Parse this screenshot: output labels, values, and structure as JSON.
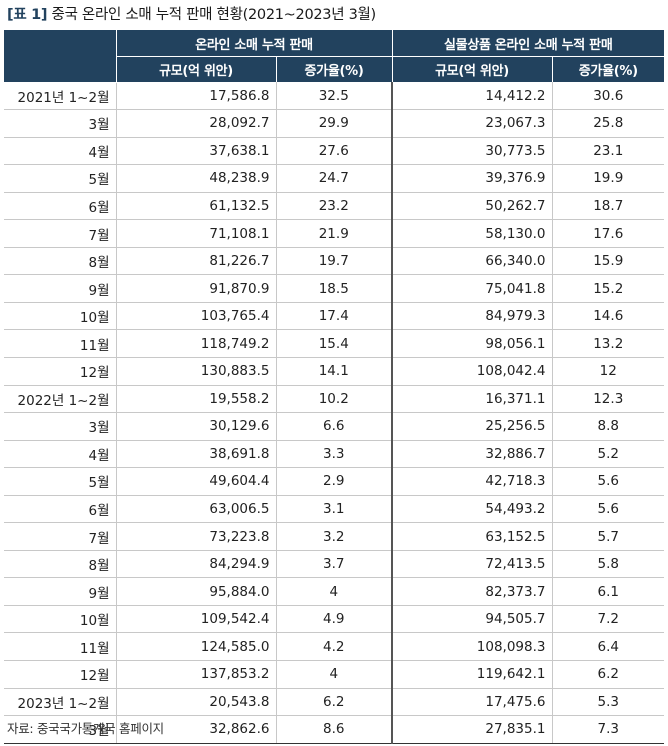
{
  "title": {
    "tag": "[표 1]",
    "text": " 중국 온라인 소매 누적 판매 현황(2021~2023년 3월)"
  },
  "table": {
    "group_headers": [
      "온라인 소매 누적 판매",
      "실물상품 온라인 소매 누적 판매"
    ],
    "sub_headers": [
      "규모(억 위안)",
      "증가율(%)",
      "규모(억 위안)",
      "증가율(%)"
    ],
    "rows": [
      {
        "period": "2021년 1~2월",
        "v1": "17,586.8",
        "r1": "32.5",
        "v2": "14,412.2",
        "r2": "30.6"
      },
      {
        "period": "3월",
        "v1": "28,092.7",
        "r1": "29.9",
        "v2": "23,067.3",
        "r2": "25.8"
      },
      {
        "period": "4월",
        "v1": "37,638.1",
        "r1": "27.6",
        "v2": "30,773.5",
        "r2": "23.1"
      },
      {
        "period": "5월",
        "v1": "48,238.9",
        "r1": "24.7",
        "v2": "39,376.9",
        "r2": "19.9"
      },
      {
        "period": "6월",
        "v1": "61,132.5",
        "r1": "23.2",
        "v2": "50,262.7",
        "r2": "18.7"
      },
      {
        "period": "7월",
        "v1": "71,108.1",
        "r1": "21.9",
        "v2": "58,130.0",
        "r2": "17.6"
      },
      {
        "period": "8월",
        "v1": "81,226.7",
        "r1": "19.7",
        "v2": "66,340.0",
        "r2": "15.9"
      },
      {
        "period": "9월",
        "v1": "91,870.9",
        "r1": "18.5",
        "v2": "75,041.8",
        "r2": "15.2"
      },
      {
        "period": "10월",
        "v1": "103,765.4",
        "r1": "17.4",
        "v2": "84,979.3",
        "r2": "14.6"
      },
      {
        "period": "11월",
        "v1": "118,749.2",
        "r1": "15.4",
        "v2": "98,056.1",
        "r2": "13.2"
      },
      {
        "period": "12월",
        "v1": "130,883.5",
        "r1": "14.1",
        "v2": "108,042.4",
        "r2": "12"
      },
      {
        "period": "2022년 1~2월",
        "v1": "19,558.2",
        "r1": "10.2",
        "v2": "16,371.1",
        "r2": "12.3"
      },
      {
        "period": "3월",
        "v1": "30,129.6",
        "r1": "6.6",
        "v2": "25,256.5",
        "r2": "8.8"
      },
      {
        "period": "4월",
        "v1": "38,691.8",
        "r1": "3.3",
        "v2": "32,886.7",
        "r2": "5.2"
      },
      {
        "period": "5월",
        "v1": "49,604.4",
        "r1": "2.9",
        "v2": "42,718.3",
        "r2": "5.6"
      },
      {
        "period": "6월",
        "v1": "63,006.5",
        "r1": "3.1",
        "v2": "54,493.2",
        "r2": "5.6"
      },
      {
        "period": "7월",
        "v1": "73,223.8",
        "r1": "3.2",
        "v2": "63,152.5",
        "r2": "5.7"
      },
      {
        "period": "8월",
        "v1": "84,294.9",
        "r1": "3.7",
        "v2": "72,413.5",
        "r2": "5.8"
      },
      {
        "period": "9월",
        "v1": "95,884.0",
        "r1": "4",
        "v2": "82,373.7",
        "r2": "6.1"
      },
      {
        "period": "10월",
        "v1": "109,542.4",
        "r1": "4.9",
        "v2": "94,505.7",
        "r2": "7.2"
      },
      {
        "period": "11월",
        "v1": "124,585.0",
        "r1": "4.2",
        "v2": "108,098.3",
        "r2": "6.4"
      },
      {
        "period": "12월",
        "v1": "137,853.2",
        "r1": "4",
        "v2": "119,642.1",
        "r2": "6.2"
      },
      {
        "period": "2023년 1~2월",
        "v1": "20,543.8",
        "r1": "6.2",
        "v2": "17,475.6",
        "r2": "5.3"
      },
      {
        "period": "3월",
        "v1": "32,862.6",
        "r1": "8.6",
        "v2": "27,835.1",
        "r2": "7.3"
      }
    ]
  },
  "source": "자료: 중국국가통계국 홈페이지",
  "colors": {
    "header_bg": "#22425e",
    "header_text": "#ffffff"
  }
}
